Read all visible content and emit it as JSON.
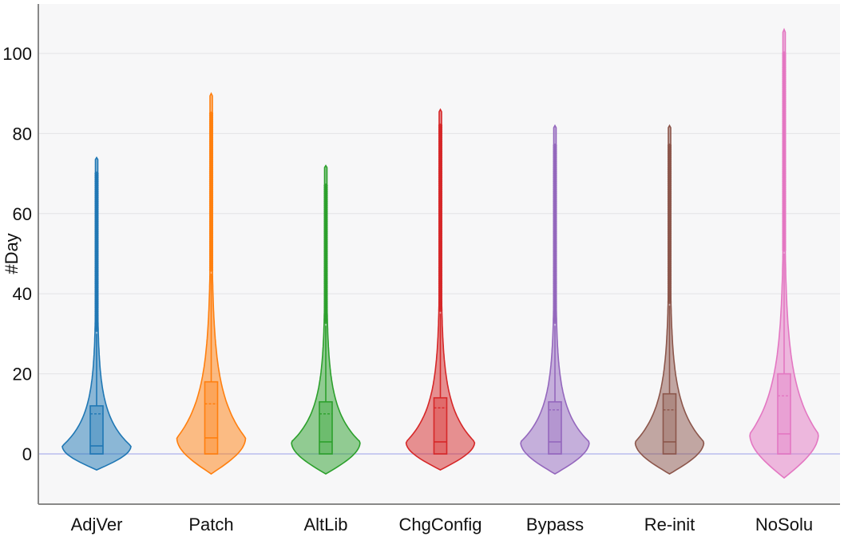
{
  "chart_data": {
    "type": "violin",
    "ylabel": "#Day",
    "ylim": [
      -12,
      112
    ],
    "yticks": [
      "0",
      "20",
      "40",
      "60",
      "80",
      "100"
    ],
    "grid": true,
    "categories": [
      "AdjVer",
      "Patch",
      "AltLib",
      "ChgConfig",
      "Bypass",
      "Re-init",
      "NoSolu"
    ],
    "colors": [
      "#1f77b4",
      "#ff7f0e",
      "#2ca02c",
      "#d62728",
      "#9467bd",
      "#8c564b",
      "#e377c2"
    ],
    "series": [
      {
        "min": -4,
        "max": 74,
        "q1": 0,
        "median": 2,
        "mean": 10,
        "q3": 12,
        "upper_fence": 30,
        "outliers_start": 31,
        "outliers_end": 70
      },
      {
        "min": -5,
        "max": 90,
        "q1": 0,
        "median": 4,
        "mean": 12.5,
        "q3": 18,
        "upper_fence": 45,
        "outliers_start": 46,
        "outliers_end": 85
      },
      {
        "min": -5,
        "max": 72,
        "q1": 0,
        "median": 3,
        "mean": 10,
        "q3": 13,
        "upper_fence": 32,
        "outliers_start": 33,
        "outliers_end": 67
      },
      {
        "min": -4,
        "max": 86,
        "q1": 0,
        "median": 3,
        "mean": 11.5,
        "q3": 14,
        "upper_fence": 35,
        "outliers_start": 36,
        "outliers_end": 82
      },
      {
        "min": -5,
        "max": 82,
        "q1": 0,
        "median": 3,
        "mean": 11,
        "q3": 13,
        "upper_fence": 32,
        "outliers_start": 33,
        "outliers_end": 77
      },
      {
        "min": -5,
        "max": 82,
        "q1": 0,
        "median": 3,
        "mean": 11,
        "q3": 15,
        "upper_fence": 37,
        "outliers_start": 38,
        "outliers_end": 77
      },
      {
        "min": -6,
        "max": 106,
        "q1": 0,
        "median": 5,
        "mean": 14.5,
        "q3": 20,
        "upper_fence": 50,
        "outliers_start": 51,
        "outliers_end": 100
      }
    ]
  }
}
